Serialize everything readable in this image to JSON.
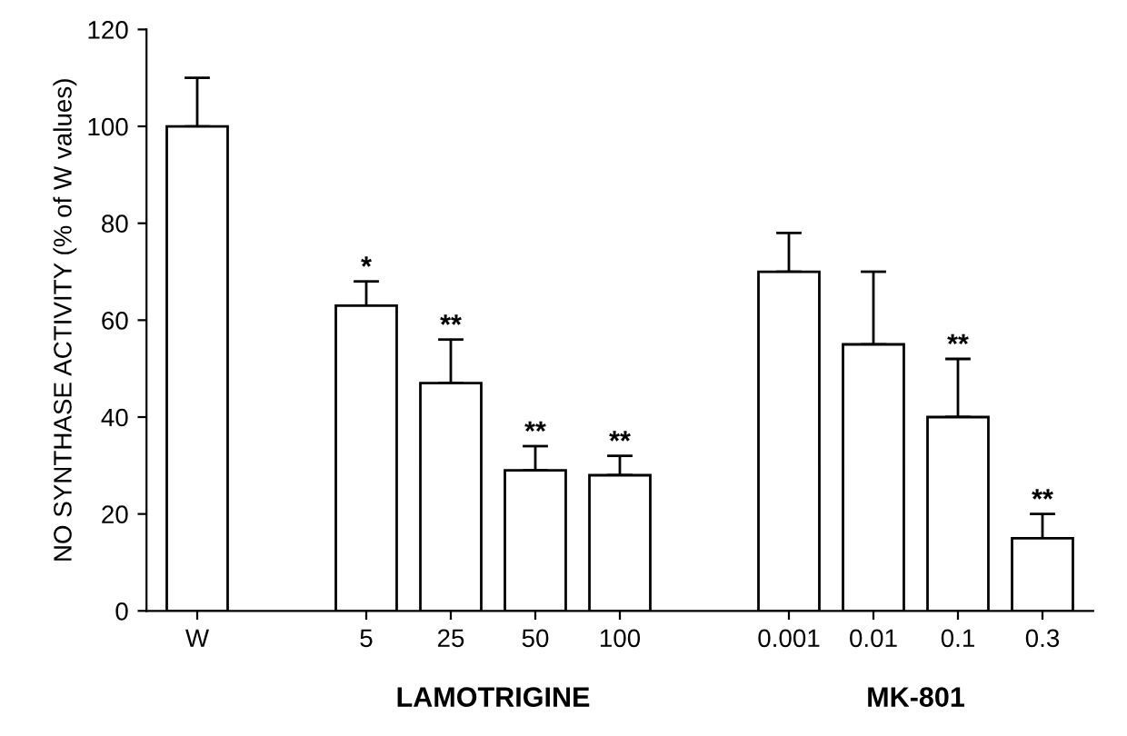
{
  "chart_data": {
    "type": "bar",
    "ylabel": "NO SYNTHASE ACTIVITY (% of W values)",
    "categories": [
      "W",
      null,
      "5",
      "25",
      "50",
      "100",
      null,
      "0.001",
      "0.01",
      "0.1",
      "0.3"
    ],
    "values": [
      100,
      null,
      63,
      47,
      29,
      28,
      null,
      70,
      55,
      40,
      15
    ],
    "errors": [
      [
        100,
        110
      ],
      null,
      [
        63,
        68
      ],
      [
        47,
        56
      ],
      [
        29,
        34
      ],
      [
        28,
        32
      ],
      null,
      [
        70,
        78
      ],
      [
        55,
        70
      ],
      [
        40,
        52
      ],
      [
        15,
        20
      ]
    ],
    "color": "#ffffff",
    "ylim": [
      0,
      120
    ],
    "yticks": [
      0,
      20,
      40,
      60,
      80,
      100,
      120
    ],
    "grid": false,
    "annotations": [
      {
        "text": "*",
        "x": "5",
        "y": 68
      },
      {
        "text": "**",
        "x": "25",
        "y": 56
      },
      {
        "text": "**",
        "x": "50",
        "y": 34
      },
      {
        "text": "**",
        "x": "100",
        "y": 32
      },
      {
        "text": "**",
        "x": "0.1",
        "y": 52
      },
      {
        "text": "**",
        "x": "0.3",
        "y": 20
      },
      {
        "text": "LAMOTRIGINE"
      },
      {
        "text": "MK-801"
      }
    ]
  }
}
